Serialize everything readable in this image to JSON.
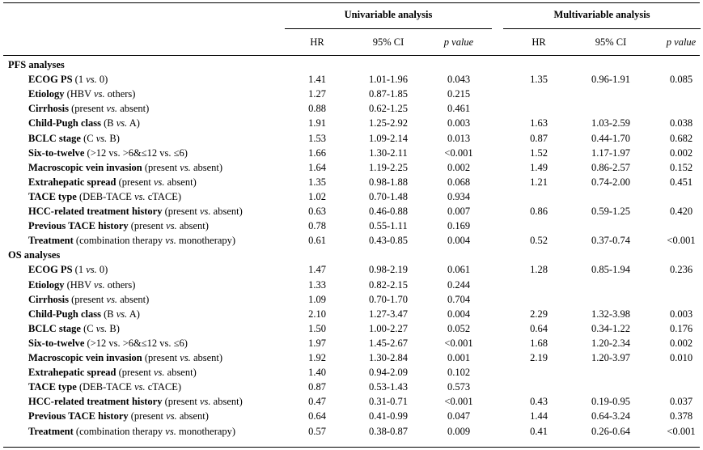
{
  "header": {
    "univariable": "Univariable analysis",
    "multivariable": "Multivariable analysis",
    "col_hr": "HR",
    "col_ci": "95% CI",
    "col_p": "p value"
  },
  "sections": [
    {
      "title": "PFS analyses",
      "rows": [
        {
          "label": "ECOG PS",
          "pre": " (1 ",
          "vs": "vs.",
          "post": " 0)",
          "u": [
            "1.41",
            "1.01-1.96",
            "0.043"
          ],
          "m": [
            "1.35",
            "0.96-1.91",
            "0.085"
          ]
        },
        {
          "label": "Etiology",
          "pre": " (HBV ",
          "vs": "vs.",
          "post": " others)",
          "u": [
            "1.27",
            "0.87-1.85",
            "0.215"
          ],
          "m": [
            "",
            "",
            ""
          ]
        },
        {
          "label": "Cirrhosis",
          "pre": " (present ",
          "vs": "vs.",
          "post": " absent)",
          "u": [
            "0.88",
            "0.62-1.25",
            "0.461"
          ],
          "m": [
            "",
            "",
            ""
          ]
        },
        {
          "label": "Child-Pugh class",
          "pre": " (B ",
          "vs": "vs.",
          "post": " A)",
          "u": [
            "1.91",
            "1.25-2.92",
            "0.003"
          ],
          "m": [
            "1.63",
            "1.03-2.59",
            "0.038"
          ]
        },
        {
          "label": "BCLC stage",
          "pre": " (C ",
          "vs": "vs.",
          "post": " B)",
          "u": [
            "1.53",
            "1.09-2.14",
            "0.013"
          ],
          "m": [
            "0.87",
            "0.44-1.70",
            "0.682"
          ]
        },
        {
          "label": "Six-to-twelve",
          "pre": " (>12 vs. >6&≤12 vs. ≤6)",
          "vs": "",
          "post": "",
          "u": [
            "1.66",
            "1.30-2.11",
            "<0.001"
          ],
          "m": [
            "1.52",
            "1.17-1.97",
            "0.002"
          ]
        },
        {
          "label": "Macroscopic vein invasion",
          "pre": " (present ",
          "vs": "vs.",
          "post": " absent)",
          "u": [
            "1.64",
            "1.19-2.25",
            "0.002"
          ],
          "m": [
            "1.49",
            "0.86-2.57",
            "0.152"
          ]
        },
        {
          "label": "Extrahepatic spread",
          "pre": " (present ",
          "vs": "vs.",
          "post": " absent)",
          "u": [
            "1.35",
            "0.98-1.88",
            "0.068"
          ],
          "m": [
            "1.21",
            "0.74-2.00",
            "0.451"
          ]
        },
        {
          "label": "TACE type",
          "pre": " (DEB-TACE ",
          "vs": "vs.",
          "post": " cTACE)",
          "u": [
            "1.02",
            "0.70-1.48",
            "0.934"
          ],
          "m": [
            "",
            "",
            ""
          ]
        },
        {
          "label": "HCC-related treatment history",
          "pre": " (present ",
          "vs": "vs.",
          "post": " absent)",
          "u": [
            "0.63",
            "0.46-0.88",
            "0.007"
          ],
          "m": [
            "0.86",
            "0.59-1.25",
            "0.420"
          ]
        },
        {
          "label": "Previous TACE history",
          "pre": " (present ",
          "vs": "vs.",
          "post": " absent)",
          "u": [
            "0.78",
            "0.55-1.11",
            "0.169"
          ],
          "m": [
            "",
            "",
            ""
          ]
        },
        {
          "label": "Treatment",
          "pre": " (combination therapy ",
          "vs": "vs.",
          "post": " monotherapy)",
          "u": [
            "0.61",
            "0.43-0.85",
            "0.004"
          ],
          "m": [
            "0.52",
            "0.37-0.74",
            "<0.001"
          ]
        }
      ]
    },
    {
      "title": "OS analyses",
      "rows": [
        {
          "label": "ECOG PS",
          "pre": " (1 ",
          "vs": "vs.",
          "post": " 0)",
          "u": [
            "1.47",
            "0.98-2.19",
            "0.061"
          ],
          "m": [
            "1.28",
            "0.85-1.94",
            "0.236"
          ]
        },
        {
          "label": "Etiology",
          "pre": " (HBV ",
          "vs": "vs.",
          "post": " others)",
          "u": [
            "1.33",
            "0.82-2.15",
            "0.244"
          ],
          "m": [
            "",
            "",
            ""
          ]
        },
        {
          "label": "Cirrhosis",
          "pre": " (present ",
          "vs": "vs.",
          "post": " absent)",
          "u": [
            "1.09",
            "0.70-1.70",
            "0.704"
          ],
          "m": [
            "",
            "",
            ""
          ]
        },
        {
          "label": "Child-Pugh class",
          "pre": " (B ",
          "vs": "vs.",
          "post": " A)",
          "u": [
            "2.10",
            "1.27-3.47",
            "0.004"
          ],
          "m": [
            "2.29",
            "1.32-3.98",
            "0.003"
          ]
        },
        {
          "label": "BCLC stage",
          "pre": " (C ",
          "vs": "vs.",
          "post": " B)",
          "u": [
            "1.50",
            "1.00-2.27",
            "0.052"
          ],
          "m": [
            "0.64",
            "0.34-1.22",
            "0.176"
          ]
        },
        {
          "label": "Six-to-twelve",
          "pre": " (>12 vs. >6&≤12 vs. ≤6)",
          "vs": "",
          "post": "",
          "u": [
            "1.97",
            "1.45-2.67",
            "<0.001"
          ],
          "m": [
            "1.68",
            "1.20-2.34",
            "0.002"
          ]
        },
        {
          "label": "Macroscopic vein invasion",
          "pre": " (present ",
          "vs": "vs.",
          "post": " absent)",
          "u": [
            "1.92",
            "1.30-2.84",
            "0.001"
          ],
          "m": [
            "2.19",
            "1.20-3.97",
            "0.010"
          ]
        },
        {
          "label": "Extrahepatic spread",
          "pre": " (present ",
          "vs": "vs.",
          "post": " absent)",
          "u": [
            "1.40",
            "0.94-2.09",
            "0.102"
          ],
          "m": [
            "",
            "",
            ""
          ]
        },
        {
          "label": "TACE type",
          "pre": " (DEB-TACE ",
          "vs": "vs.",
          "post": " cTACE)",
          "u": [
            "0.87",
            "0.53-1.43",
            "0.573"
          ],
          "m": [
            "",
            "",
            ""
          ]
        },
        {
          "label": "HCC-related treatment history",
          "pre": " (present ",
          "vs": "vs.",
          "post": " absent)",
          "u": [
            "0.47",
            "0.31-0.71",
            "<0.001"
          ],
          "m": [
            "0.43",
            "0.19-0.95",
            "0.037"
          ]
        },
        {
          "label": "Previous TACE history",
          "pre": " (present ",
          "vs": "vs.",
          "post": " absent)",
          "u": [
            "0.64",
            "0.41-0.99",
            "0.047"
          ],
          "m": [
            "1.44",
            "0.64-3.24",
            "0.378"
          ]
        },
        {
          "label": "Treatment",
          "pre": " (combination therapy ",
          "vs": "vs.",
          "post": " monotherapy)",
          "u": [
            "0.57",
            "0.38-0.87",
            "0.009"
          ],
          "m": [
            "0.41",
            "0.26-0.64",
            "<0.001"
          ]
        }
      ]
    }
  ]
}
